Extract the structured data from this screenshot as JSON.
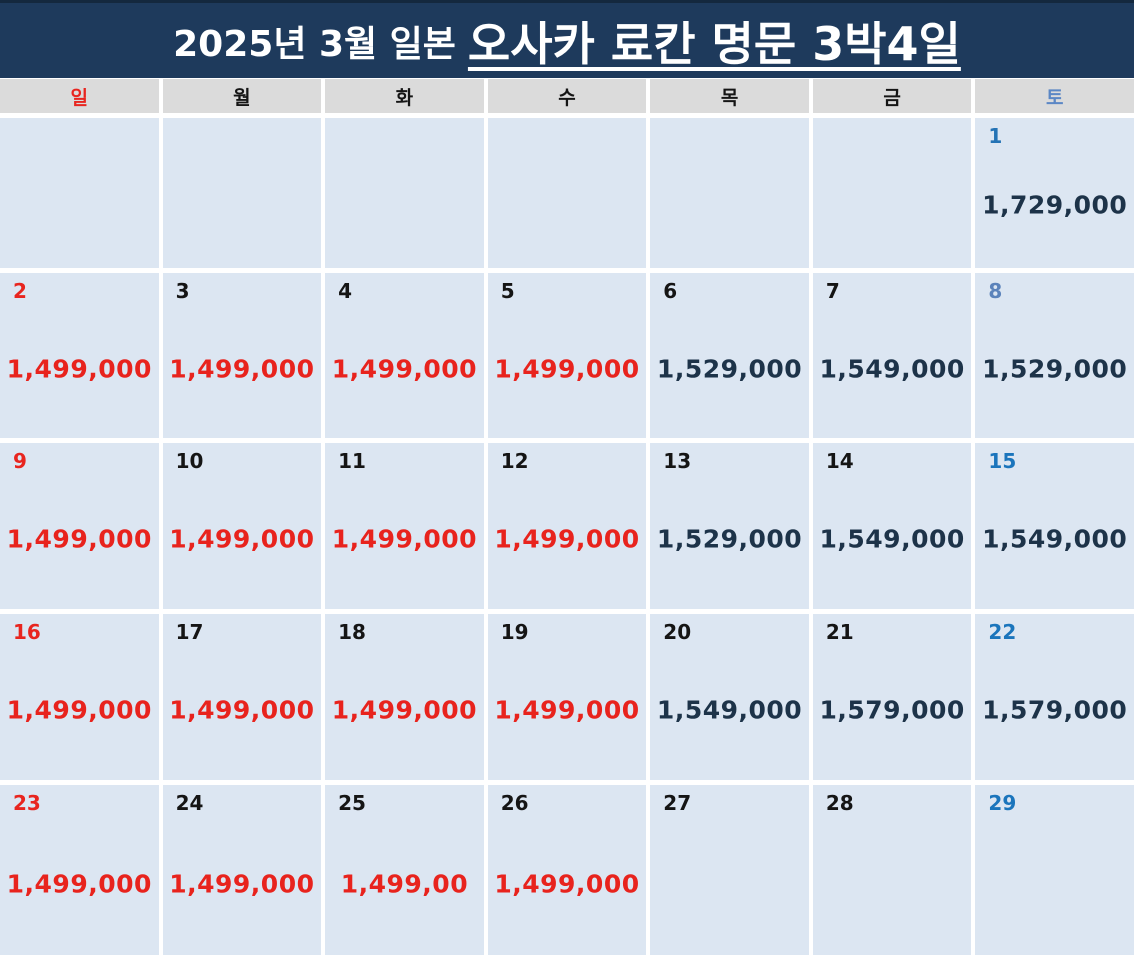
{
  "title": {
    "prefix": "2025년 3월 일본",
    "main_underlined": "오사카 료칸 명문 3박4일"
  },
  "colors": {
    "title_bar_bg": "#1e3a5c",
    "title_text": "#ffffff",
    "weekday_header_bg": "#dbdbdb",
    "cell_bg": "#dce6f2",
    "sunday_red": "#e8251f",
    "weekday_black": "#151515",
    "saturday_blue": "#1b75bc",
    "saturday_blue_muted": "#5b83bb",
    "price_red": "#e8231d",
    "price_navy": "#1d3349"
  },
  "weekday_header": [
    {
      "label": "일",
      "color": "#e8251f"
    },
    {
      "label": "월",
      "color": "#151515"
    },
    {
      "label": "화",
      "color": "#151515"
    },
    {
      "label": "수",
      "color": "#151515"
    },
    {
      "label": "목",
      "color": "#151515"
    },
    {
      "label": "금",
      "color": "#151515"
    },
    {
      "label": "토",
      "color": "#5b87c5"
    }
  ],
  "calendar": {
    "rows": [
      [
        {
          "day": "",
          "day_color": "",
          "price": "",
          "price_color": ""
        },
        {
          "day": "",
          "day_color": "",
          "price": "",
          "price_color": ""
        },
        {
          "day": "",
          "day_color": "",
          "price": "",
          "price_color": ""
        },
        {
          "day": "",
          "day_color": "",
          "price": "",
          "price_color": ""
        },
        {
          "day": "",
          "day_color": "",
          "price": "",
          "price_color": ""
        },
        {
          "day": "",
          "day_color": "",
          "price": "",
          "price_color": ""
        },
        {
          "day": "1",
          "day_color": "#2473b5",
          "price": "1,729,000",
          "price_color": "#1d3349"
        }
      ],
      [
        {
          "day": "2",
          "day_color": "#e8251f",
          "price": "1,499,000",
          "price_color": "#e8231d"
        },
        {
          "day": "3",
          "day_color": "#151515",
          "price": "1,499,000",
          "price_color": "#e8231d"
        },
        {
          "day": "4",
          "day_color": "#151515",
          "price": "1,499,000",
          "price_color": "#e8231d"
        },
        {
          "day": "5",
          "day_color": "#151515",
          "price": "1,499,000",
          "price_color": "#e8231d"
        },
        {
          "day": "6",
          "day_color": "#151515",
          "price": "1,529,000",
          "price_color": "#1d3349"
        },
        {
          "day": "7",
          "day_color": "#151515",
          "price": "1,549,000",
          "price_color": "#1d3349"
        },
        {
          "day": "8",
          "day_color": "#5b83bb",
          "price": "1,529,000",
          "price_color": "#1d3349"
        }
      ],
      [
        {
          "day": "9",
          "day_color": "#e8251f",
          "price": "1,499,000",
          "price_color": "#e8231d"
        },
        {
          "day": "10",
          "day_color": "#151515",
          "price": "1,499,000",
          "price_color": "#e8231d"
        },
        {
          "day": "11",
          "day_color": "#151515",
          "price": "1,499,000",
          "price_color": "#e8231d"
        },
        {
          "day": "12",
          "day_color": "#151515",
          "price": "1,499,000",
          "price_color": "#e8231d"
        },
        {
          "day": "13",
          "day_color": "#151515",
          "price": "1,529,000",
          "price_color": "#1d3349"
        },
        {
          "day": "14",
          "day_color": "#151515",
          "price": "1,549,000",
          "price_color": "#1d3349"
        },
        {
          "day": "15",
          "day_color": "#1b75bc",
          "price": "1,549,000",
          "price_color": "#1d3349"
        }
      ],
      [
        {
          "day": "16",
          "day_color": "#e8251f",
          "price": "1,499,000",
          "price_color": "#e8231d"
        },
        {
          "day": "17",
          "day_color": "#151515",
          "price": "1,499,000",
          "price_color": "#e8231d"
        },
        {
          "day": "18",
          "day_color": "#151515",
          "price": "1,499,000",
          "price_color": "#e8231d"
        },
        {
          "day": "19",
          "day_color": "#151515",
          "price": "1,499,000",
          "price_color": "#e8231d"
        },
        {
          "day": "20",
          "day_color": "#151515",
          "price": "1,549,000",
          "price_color": "#1d3349"
        },
        {
          "day": "21",
          "day_color": "#151515",
          "price": "1,579,000",
          "price_color": "#1d3349"
        },
        {
          "day": "22",
          "day_color": "#1b75bc",
          "price": "1,579,000",
          "price_color": "#1d3349"
        }
      ],
      [
        {
          "day": "23",
          "day_color": "#e8251f",
          "price": "1,499,000",
          "price_color": "#e8231d"
        },
        {
          "day": "24",
          "day_color": "#151515",
          "price": "1,499,000",
          "price_color": "#e8231d"
        },
        {
          "day": "25",
          "day_color": "#151515",
          "price": "1,499,00",
          "price_color": "#e8231d"
        },
        {
          "day": "26",
          "day_color": "#151515",
          "price": "1,499,000",
          "price_color": "#e8231d"
        },
        {
          "day": "27",
          "day_color": "#151515",
          "price": "",
          "price_color": ""
        },
        {
          "day": "28",
          "day_color": "#151515",
          "price": "",
          "price_color": ""
        },
        {
          "day": "29",
          "day_color": "#1b75bc",
          "price": "",
          "price_color": ""
        }
      ]
    ]
  }
}
